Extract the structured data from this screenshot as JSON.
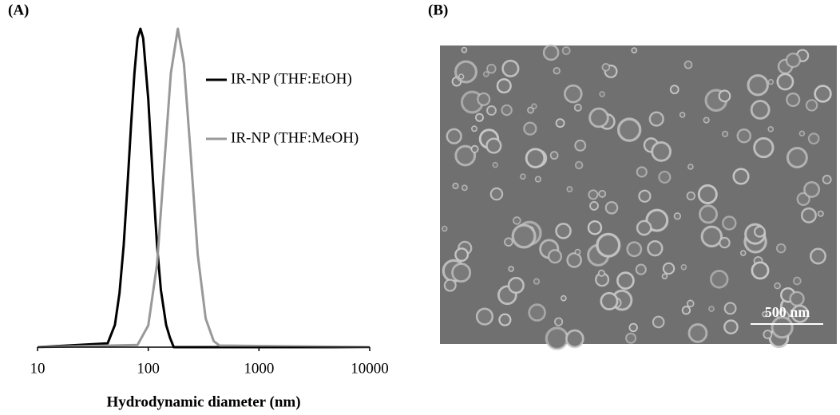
{
  "chart_data": {
    "type": "line",
    "panel_label": "(A)",
    "xlabel": "Hydrodynamic diameter (nm)",
    "xscale": "log",
    "xlim": [
      10,
      10000
    ],
    "xticks": [
      10,
      100,
      1000,
      10000
    ],
    "ylim": [
      0,
      100
    ],
    "legend": "upper right",
    "series": [
      {
        "name": "IR-NP (THF:EtOH)",
        "color": "#000000",
        "x": [
          10,
          43,
          50,
          55,
          60,
          65,
          70,
          75,
          80,
          85,
          90,
          100,
          110,
          120,
          130,
          145,
          157,
          170,
          10000
        ],
        "values": [
          0,
          1.2,
          7,
          17,
          32,
          51,
          70,
          86,
          97,
          100,
          97,
          78,
          53,
          32,
          18,
          7,
          3,
          0,
          0
        ]
      },
      {
        "name": "IR-NP (THF:MeOH)",
        "color": "#999999",
        "x": [
          10,
          80,
          100,
          120,
          140,
          160,
          185,
          210,
          240,
          280,
          330,
          390,
          440,
          10000
        ],
        "values": [
          0,
          0.7,
          6.8,
          26,
          58,
          86,
          100,
          89,
          62,
          29,
          9,
          1.9,
          0.5,
          0
        ]
      }
    ]
  },
  "image": {
    "panel_label": "(B)",
    "scale_bar": "500 nm"
  }
}
